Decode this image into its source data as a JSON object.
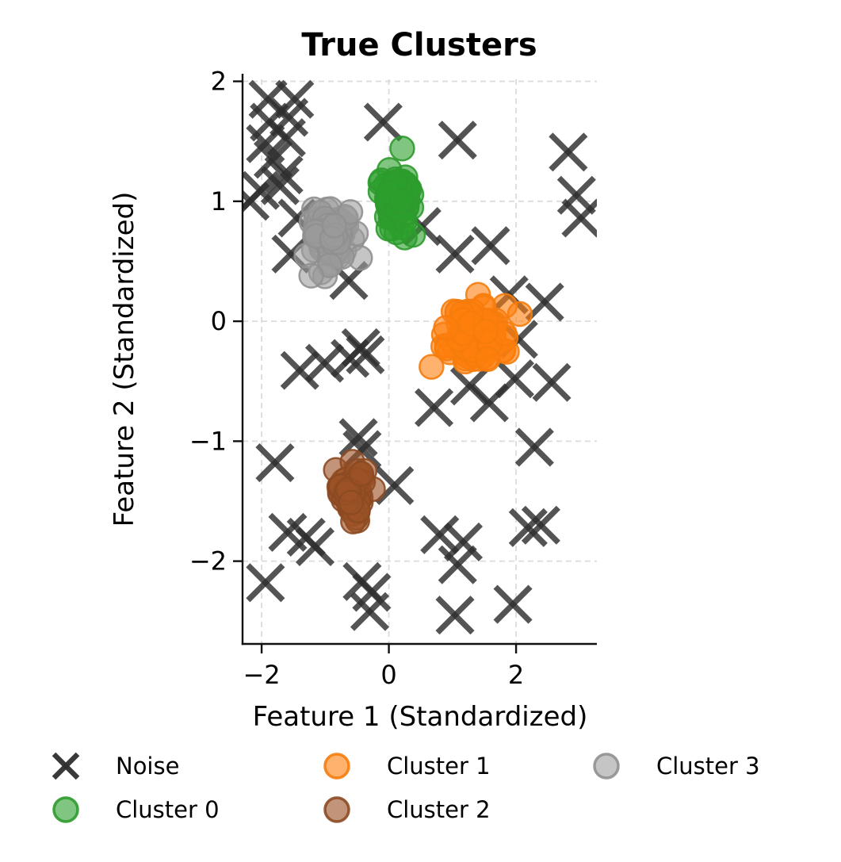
{
  "chart_data": {
    "type": "scatter",
    "title": "True Clusters",
    "xlabel": "Feature 1 (Standardized)",
    "ylabel": "Feature 2 (Standardized)",
    "xlim": [
      -2.3,
      3.27
    ],
    "ylim": [
      -2.69,
      2.05
    ],
    "xticks": [
      {
        "value": -2,
        "label": "−2"
      },
      {
        "value": 0,
        "label": "0"
      },
      {
        "value": 2,
        "label": "2"
      }
    ],
    "yticks": [
      {
        "value": -2,
        "label": "−2"
      },
      {
        "value": -1,
        "label": "−1"
      },
      {
        "value": 0,
        "label": "0"
      },
      {
        "value": 1,
        "label": "1"
      },
      {
        "value": 2,
        "label": "2"
      }
    ],
    "grid": true,
    "grid_color": "#dcdcdc",
    "spine_color": "#111111",
    "legend_position": "below-plot, 3 columns, no frame",
    "series": [
      {
        "name": "Noise",
        "marker": "x",
        "color": "#2e2e2e",
        "alpha": 0.82,
        "points": [
          [
            -1.9,
            1.85
          ],
          [
            -1.48,
            1.85
          ],
          [
            -1.88,
            1.66
          ],
          [
            -1.57,
            1.7
          ],
          [
            -1.94,
            1.48
          ],
          [
            -1.61,
            1.53
          ],
          [
            -1.82,
            1.35
          ],
          [
            -1.71,
            1.13
          ],
          [
            -1.65,
            1.22
          ],
          [
            -2.02,
            1.09
          ],
          [
            -2.18,
            1.0
          ],
          [
            -1.44,
            0.86
          ],
          [
            -1.54,
            0.56
          ],
          [
            -0.63,
            0.34
          ],
          [
            -0.09,
            1.66
          ],
          [
            0.52,
            0.79
          ],
          [
            1.08,
            1.51
          ],
          [
            2.82,
            1.41
          ],
          [
            2.95,
            1.05
          ],
          [
            3.02,
            0.86
          ],
          [
            1.04,
            0.56
          ],
          [
            1.6,
            0.63
          ],
          [
            1.89,
            0.22
          ],
          [
            2.45,
            0.16
          ],
          [
            2.04,
            -0.15
          ],
          [
            1.98,
            -0.48
          ],
          [
            2.56,
            -0.51
          ],
          [
            1.27,
            -0.54
          ],
          [
            1.58,
            -0.68
          ],
          [
            0.71,
            -0.72
          ],
          [
            -1.4,
            -0.41
          ],
          [
            -1.01,
            -0.35
          ],
          [
            -0.61,
            -0.31
          ],
          [
            -0.44,
            -0.22
          ],
          [
            -0.37,
            -0.28
          ],
          [
            -1.79,
            -1.18
          ],
          [
            -0.48,
            -0.97
          ],
          [
            -0.42,
            -1.07
          ],
          [
            0.09,
            -1.37
          ],
          [
            2.29,
            -1.05
          ],
          [
            -1.59,
            -1.76
          ],
          [
            -1.3,
            -1.8
          ],
          [
            -1.16,
            -1.88
          ],
          [
            0.8,
            -1.78
          ],
          [
            1.17,
            -1.84
          ],
          [
            1.08,
            -2.03
          ],
          [
            2.19,
            -1.72
          ],
          [
            2.39,
            -1.7
          ],
          [
            -1.94,
            -2.18
          ],
          [
            -0.42,
            -2.17
          ],
          [
            -0.27,
            -2.26
          ],
          [
            -0.3,
            -2.42
          ],
          [
            1.95,
            -2.36
          ],
          [
            1.04,
            -2.45
          ]
        ]
      },
      {
        "name": "Cluster 0",
        "marker": "circle",
        "fill": "#2ca02c",
        "fill_alpha": 0.6,
        "edge": "#2e9a2e",
        "edge_alpha": 0.9,
        "center": [
          0.09,
          1.02
        ],
        "std": [
          0.14,
          0.12
        ],
        "count": 75,
        "seed": 42,
        "extras": [
          [
            0.21,
            1.44
          ],
          [
            0.38,
            0.72
          ]
        ]
      },
      {
        "name": "Cluster 1",
        "marker": "circle",
        "fill": "#ff7f0e",
        "fill_alpha": 0.6,
        "edge": "#f57c0c",
        "edge_alpha": 0.9,
        "center": [
          1.36,
          -0.12
        ],
        "std": [
          0.2,
          0.125
        ],
        "count": 130,
        "seed": 11,
        "extras": [
          [
            0.67,
            -0.38
          ],
          [
            2.06,
            0.06
          ]
        ]
      },
      {
        "name": "Cluster 2",
        "marker": "circle",
        "fill": "#9d5327",
        "fill_alpha": 0.62,
        "edge": "#8c4a22",
        "edge_alpha": 0.9,
        "center": [
          -0.56,
          -1.43
        ],
        "std": [
          0.13,
          0.11
        ],
        "count": 60,
        "seed": 3,
        "extras": []
      },
      {
        "name": "Cluster 3",
        "marker": "circle",
        "fill": "#9b9b9b",
        "fill_alpha": 0.58,
        "edge": "#909090",
        "edge_alpha": 0.9,
        "center": [
          -0.92,
          0.71
        ],
        "std": [
          0.15,
          0.12
        ],
        "count": 80,
        "seed": 7,
        "extras": [
          [
            -1.22,
            0.38
          ]
        ]
      }
    ],
    "legend": {
      "columns": [
        [
          "Noise",
          "Cluster 0"
        ],
        [
          "Cluster 1",
          "Cluster 2"
        ],
        [
          "Cluster 3"
        ]
      ]
    }
  }
}
